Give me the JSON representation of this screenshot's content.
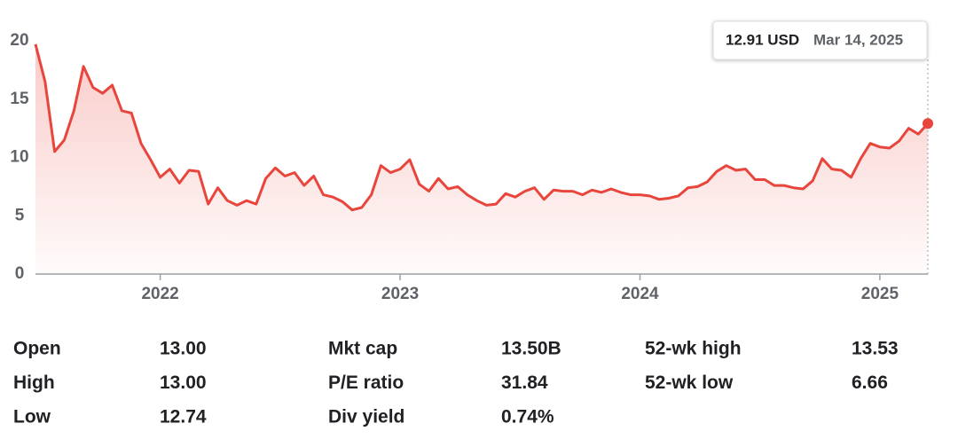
{
  "chart_data": {
    "type": "line",
    "x": [
      2021.48,
      2021.52,
      2021.56,
      2021.6,
      2021.64,
      2021.68,
      2021.72,
      2021.76,
      2021.8,
      2021.84,
      2021.88,
      2021.92,
      2021.96,
      2022,
      2022.04,
      2022.08,
      2022.12,
      2022.16,
      2022.2,
      2022.24,
      2022.28,
      2022.32,
      2022.36,
      2022.4,
      2022.44,
      2022.48,
      2022.52,
      2022.56,
      2022.6,
      2022.64,
      2022.68,
      2022.72,
      2022.76,
      2022.8,
      2022.84,
      2022.88,
      2022.92,
      2022.96,
      2023,
      2023.04,
      2023.08,
      2023.12,
      2023.16,
      2023.2,
      2023.24,
      2023.28,
      2023.32,
      2023.36,
      2023.4,
      2023.44,
      2023.48,
      2023.52,
      2023.56,
      2023.6,
      2023.64,
      2023.68,
      2023.72,
      2023.76,
      2023.8,
      2023.84,
      2023.88,
      2023.92,
      2023.96,
      2024,
      2024.04,
      2024.08,
      2024.12,
      2024.16,
      2024.2,
      2024.24,
      2024.28,
      2024.32,
      2024.36,
      2024.4,
      2024.44,
      2024.48,
      2024.52,
      2024.56,
      2024.6,
      2024.64,
      2024.68,
      2024.72,
      2024.76,
      2024.8,
      2024.84,
      2024.88,
      2024.92,
      2024.96,
      2025,
      2025.04,
      2025.08,
      2025.12,
      2025.16,
      2025.2
    ],
    "series": [
      {
        "color": "#e8453c",
        "values": [
          19.7,
          16.5,
          10.5,
          11.5,
          14,
          17.8,
          16,
          15.5,
          16.2,
          14,
          13.8,
          11.2,
          9.8,
          8.3,
          9,
          7.8,
          8.9,
          8.8,
          6,
          7.4,
          6.3,
          5.9,
          6.3,
          6,
          8.2,
          9.1,
          8.4,
          8.7,
          7.6,
          8.4,
          6.8,
          6.6,
          6.2,
          5.5,
          5.7,
          6.8,
          9.3,
          8.7,
          9,
          9.8,
          7.7,
          7.1,
          8.2,
          7.3,
          7.5,
          6.8,
          6.3,
          5.9,
          6,
          6.9,
          6.6,
          7.1,
          7.4,
          6.4,
          7.2,
          7.1,
          7.1,
          6.8,
          7.2,
          7,
          7.3,
          7,
          6.8,
          6.8,
          6.7,
          6.4,
          6.5,
          6.7,
          7.4,
          7.5,
          7.9,
          8.8,
          9.3,
          8.9,
          9,
          8.1,
          8.1,
          7.6,
          7.6,
          7.4,
          7.3,
          8,
          9.9,
          9,
          8.9,
          8.3,
          9.9,
          11.2,
          10.9,
          10.8,
          11.4,
          12.5,
          12,
          12.91
        ]
      }
    ],
    "xlim": [
      2021.48,
      2025.2
    ],
    "xticks": [
      2022,
      2023,
      2024,
      2025
    ],
    "ylim": [
      0,
      20
    ],
    "yticks": [
      0,
      5,
      10,
      15,
      20
    ],
    "tooltip": {
      "price": "12.91 USD",
      "date": "Mar 14, 2025"
    }
  },
  "stats": {
    "rows": [
      [
        "Open",
        "13.00",
        "Mkt cap",
        "13.50B",
        "52-wk high",
        "13.53"
      ],
      [
        "High",
        "13.00",
        "P/E ratio",
        "31.84",
        "52-wk low",
        "6.66"
      ],
      [
        "Low",
        "12.74",
        "Div yield",
        "0.74%"
      ]
    ]
  }
}
